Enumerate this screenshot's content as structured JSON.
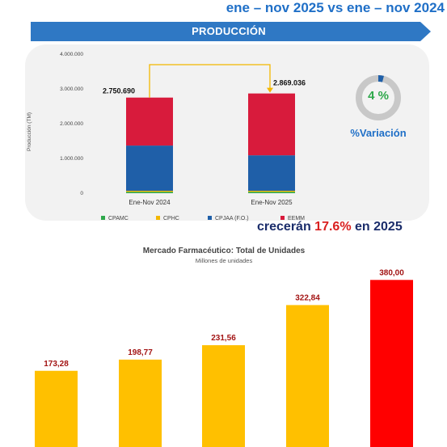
{
  "header": {
    "title": "ene – nov 2025 vs ene – nov 2024"
  },
  "banner": {
    "label": "PRODUCCIÓN",
    "color": "#2f78c4"
  },
  "chart_data": [
    {
      "type": "bar",
      "stacked": true,
      "categories": [
        "Ene-Nov 2024",
        "Ene-Nov 2025"
      ],
      "series": [
        {
          "name": "CPAMC",
          "color": "#2ea84b",
          "values": [
            40000,
            40000
          ]
        },
        {
          "name": "CPHC",
          "color": "#f3b700",
          "values": [
            30000,
            30000
          ]
        },
        {
          "name": "CPJAA (F.O.)",
          "color": "#1f5fa8",
          "values": [
            1300000,
            1020000
          ]
        },
        {
          "name": "EEMM",
          "color": "#d81b3c",
          "values": [
            1380690,
            1779036
          ]
        }
      ],
      "totals": [
        "2.750.690",
        "2.869.036"
      ],
      "ylabel": "Producción (TM)",
      "ylim": [
        0,
        4000000
      ],
      "yticks": [
        "0",
        "1.000.000",
        "2.000.000",
        "3.000.000",
        "4.000.000"
      ],
      "legend_position": "bottom",
      "grid": false
    },
    {
      "type": "bar",
      "title": "Mercado Farmacéutico: Total de Unidades",
      "subtitle": "Millones de unidades",
      "values": [
        173.28,
        198.77,
        231.56,
        322.84,
        380.0
      ],
      "labels": [
        "173,28",
        "198,77",
        "231,56",
        "322,84",
        "380,00"
      ],
      "colors": [
        "#ffc000",
        "#ffc000",
        "#ffc000",
        "#ffc000",
        "#ff0000"
      ],
      "label_color": "#a31515",
      "ylim": [
        0,
        410
      ],
      "grid": false
    }
  ],
  "donut": {
    "label": "4 %",
    "caption": "%Variación",
    "value": 0.04,
    "color": "#1f5fa8",
    "track_color": "#c8c8c8",
    "label_color": "#2ea84b",
    "caption_color": "#1f6fc7"
  },
  "overlay": {
    "prefix": "crecerán",
    "highlight": "17.6%",
    "suffix": "en 2025"
  }
}
